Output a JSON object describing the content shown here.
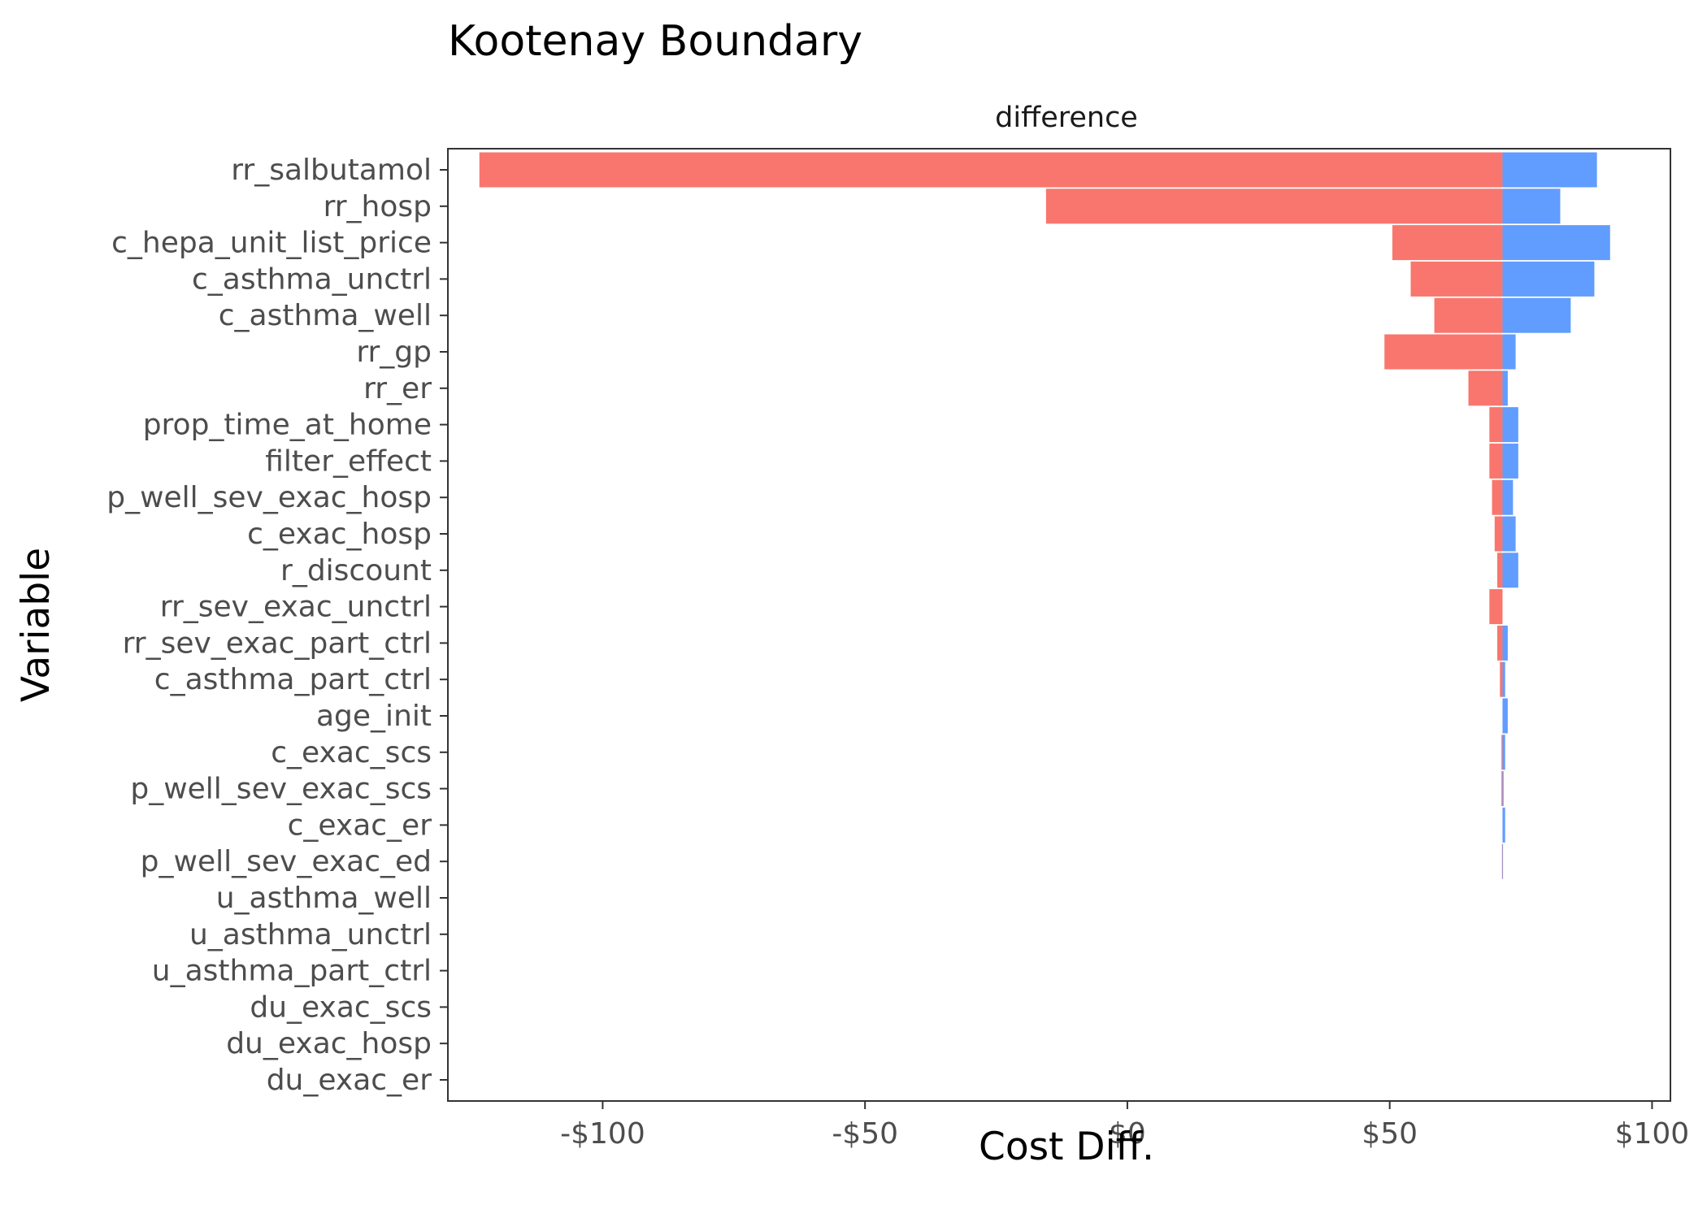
{
  "chart_data": {
    "type": "bar",
    "orientation": "horizontal",
    "title": "Kootenay Boundary",
    "facet_label": "difference",
    "xlabel": "Cost Diff.",
    "ylabel": "Variable",
    "xlim": [
      -129.5,
      103.5
    ],
    "x_ticks": [
      -100,
      -50,
      0,
      50,
      100
    ],
    "x_tick_labels": [
      "-$100",
      "-$50",
      "$0",
      "$50",
      "$100"
    ],
    "grid": false,
    "colors": {
      "low": "#F8766D",
      "high": "#619CFF"
    },
    "baseline": 71.5,
    "categories": [
      "rr_salbutamol",
      "rr_hosp",
      "c_hepa_unit_list_price",
      "c_asthma_unctrl",
      "c_asthma_well",
      "rr_gp",
      "rr_er",
      "prop_time_at_home",
      "filter_effect",
      "p_well_sev_exac_hosp",
      "c_exac_hosp",
      "r_discount",
      "rr_sev_exac_unctrl",
      "rr_sev_exac_part_ctrl",
      "c_asthma_part_ctrl",
      "age_init",
      "c_exac_scs",
      "p_well_sev_exac_scs",
      "c_exac_er",
      "p_well_sev_exac_ed",
      "u_asthma_well",
      "u_asthma_unctrl",
      "u_asthma_part_ctrl",
      "du_exac_scs",
      "du_exac_hosp",
      "du_exac_er"
    ],
    "series": [
      {
        "name": "low",
        "values": [
          -123.5,
          -15.5,
          50.5,
          54,
          58.5,
          49,
          65,
          69,
          69,
          69.5,
          70,
          70.5,
          69,
          70.5,
          71,
          71.5,
          71.3,
          71.3,
          71.5,
          71.4,
          71.5,
          71.5,
          71.5,
          71.5,
          71.5,
          71.5
        ]
      },
      {
        "name": "high",
        "values": [
          89.5,
          82.5,
          92,
          89,
          84.5,
          74,
          72.5,
          74.5,
          74.5,
          73.5,
          74,
          74.5,
          71.5,
          72.5,
          72,
          72.5,
          72,
          71.7,
          72,
          71.6,
          71.5,
          71.5,
          71.5,
          71.5,
          71.5,
          71.5
        ]
      }
    ]
  }
}
